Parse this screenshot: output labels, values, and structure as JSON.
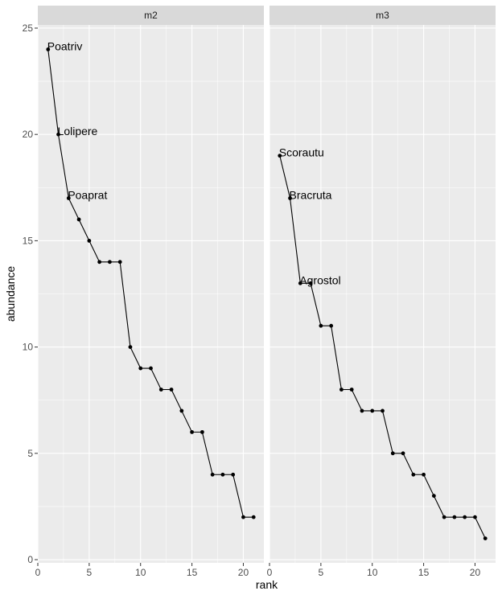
{
  "chart_data": {
    "type": "line",
    "xlabel": "rank",
    "ylabel": "abundance",
    "xlim": [
      0,
      21.5
    ],
    "ylim": [
      0,
      25
    ],
    "x_ticks": [
      0,
      5,
      10,
      15,
      20
    ],
    "y_ticks": [
      0,
      5,
      10,
      15,
      20,
      25
    ],
    "grid": true,
    "facets": [
      {
        "name": "m2",
        "x": [
          1,
          2,
          3,
          4,
          5,
          6,
          7,
          8,
          9,
          10,
          11,
          12,
          13,
          14,
          15,
          16,
          17,
          18,
          19,
          20,
          21
        ],
        "values": [
          24,
          20,
          17,
          16,
          15,
          14,
          14,
          14,
          10,
          9,
          9,
          8,
          8,
          7,
          6,
          6,
          4,
          4,
          4,
          2,
          2
        ],
        "labels": [
          {
            "rank": 1,
            "text": "Poatriv"
          },
          {
            "rank": 2,
            "text": "Lolipere"
          },
          {
            "rank": 3,
            "text": "Poaprat"
          }
        ]
      },
      {
        "name": "m3",
        "x": [
          1,
          2,
          3,
          4,
          5,
          6,
          7,
          8,
          9,
          10,
          11,
          12,
          13,
          14,
          15,
          16,
          17,
          18,
          19,
          20,
          21
        ],
        "values": [
          19,
          17,
          13,
          13,
          11,
          11,
          8,
          8,
          7,
          7,
          7,
          5,
          5,
          4,
          4,
          3,
          2,
          2,
          2,
          2,
          1
        ],
        "labels": [
          {
            "rank": 1,
            "text": "Scorautu"
          },
          {
            "rank": 2,
            "text": "Bracruta"
          },
          {
            "rank": 3,
            "text": "Agrostol"
          }
        ]
      }
    ]
  }
}
